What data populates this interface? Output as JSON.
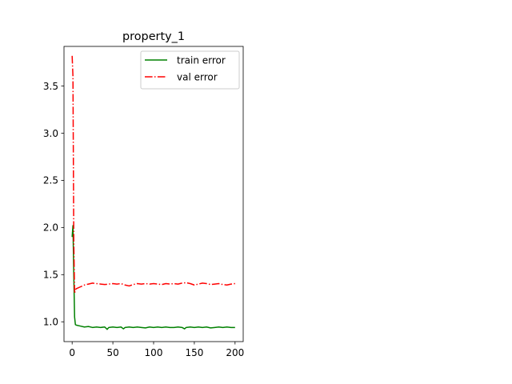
{
  "chart_data": {
    "type": "line",
    "title": "property_1",
    "xlabel": "",
    "ylabel": "",
    "xlim": [
      -10,
      210
    ],
    "ylim": [
      0.79,
      3.92
    ],
    "xticks": [
      0,
      50,
      100,
      150,
      200
    ],
    "xtick_labels": [
      "0",
      "50",
      "100",
      "150",
      "200"
    ],
    "yticks": [
      1.0,
      1.5,
      2.0,
      2.5,
      3.0,
      3.5
    ],
    "ytick_labels": [
      "1.0",
      "1.5",
      "2.0",
      "2.5",
      "3.0",
      "3.5"
    ],
    "grid": false,
    "legend_position": "upper right",
    "series": [
      {
        "name": "train error",
        "color": "#008000",
        "style": "solid",
        "x": [
          0,
          1,
          2,
          3,
          4,
          5,
          10,
          15,
          20,
          25,
          30,
          35,
          40,
          43,
          45,
          50,
          55,
          60,
          63,
          65,
          70,
          75,
          80,
          85,
          90,
          95,
          100,
          105,
          110,
          115,
          120,
          125,
          130,
          135,
          138,
          140,
          145,
          150,
          155,
          160,
          165,
          170,
          175,
          180,
          185,
          190,
          195,
          200
        ],
        "values": [
          1.9,
          2.02,
          1.5,
          1.05,
          0.97,
          0.965,
          0.955,
          0.945,
          0.95,
          0.94,
          0.945,
          0.94,
          0.945,
          0.92,
          0.94,
          0.945,
          0.94,
          0.945,
          0.925,
          0.94,
          0.945,
          0.94,
          0.945,
          0.94,
          0.935,
          0.945,
          0.94,
          0.945,
          0.94,
          0.945,
          0.94,
          0.94,
          0.945,
          0.94,
          0.925,
          0.94,
          0.945,
          0.94,
          0.945,
          0.94,
          0.945,
          0.935,
          0.94,
          0.945,
          0.94,
          0.945,
          0.94,
          0.94
        ]
      },
      {
        "name": "val error",
        "color": "#ff0000",
        "style": "dashdot",
        "x": [
          0,
          1,
          2,
          3,
          4,
          5,
          10,
          15,
          20,
          25,
          30,
          35,
          40,
          45,
          50,
          55,
          60,
          65,
          70,
          75,
          80,
          85,
          90,
          95,
          100,
          105,
          110,
          115,
          120,
          125,
          130,
          135,
          140,
          145,
          150,
          155,
          160,
          165,
          170,
          175,
          180,
          185,
          190,
          195,
          200
        ],
        "values": [
          3.82,
          3.6,
          1.85,
          1.3,
          1.34,
          1.35,
          1.37,
          1.39,
          1.4,
          1.41,
          1.405,
          1.4,
          1.395,
          1.4,
          1.405,
          1.4,
          1.405,
          1.39,
          1.38,
          1.395,
          1.405,
          1.4,
          1.405,
          1.4,
          1.405,
          1.4,
          1.395,
          1.405,
          1.4,
          1.405,
          1.4,
          1.41,
          1.415,
          1.405,
          1.39,
          1.4,
          1.41,
          1.405,
          1.395,
          1.4,
          1.405,
          1.395,
          1.39,
          1.4,
          1.405
        ]
      }
    ]
  }
}
